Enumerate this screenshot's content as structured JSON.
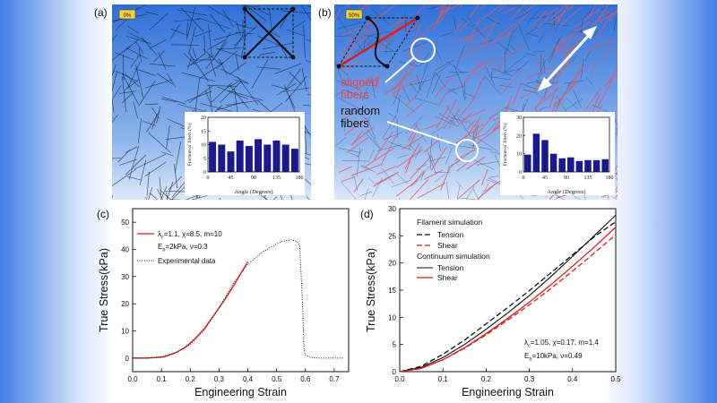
{
  "colors": {
    "panel_bg_top": "#2f6fd8",
    "panel_bg_bottom": "#d9e8fb",
    "fiber_dark": "#1b2430",
    "fiber_red": "#e05a63",
    "hist_bar": "#1a1a8c",
    "red_line": "#d81f1f",
    "black_line": "#111111"
  },
  "panels": {
    "a": {
      "label": "(a)",
      "strain_badge": "0%"
    },
    "b": {
      "label": "(b)",
      "strain_badge": "50%",
      "aligned_label": "aligned\nfibers",
      "random_label": "random\nfibers"
    },
    "c": {
      "label": "(c)"
    },
    "d": {
      "label": "(d)"
    }
  },
  "chart_data": [
    {
      "id": "hist_a",
      "type": "bar",
      "title": "",
      "xlabel": "Angle (Degrees)",
      "ylabel": "Fraction of fibers (%)",
      "x_ticks": [
        0,
        45,
        90,
        135,
        180
      ],
      "y_ticks": [
        0,
        5,
        10,
        15,
        20
      ],
      "ylim": [
        0,
        20
      ],
      "xlim": [
        0,
        180
      ],
      "bin_centers": [
        9,
        27,
        45,
        63,
        81,
        99,
        117,
        135,
        153,
        171
      ],
      "values": [
        11,
        10,
        7.5,
        11.5,
        9.5,
        12,
        10,
        11.5,
        10,
        8.5
      ]
    },
    {
      "id": "hist_b",
      "type": "bar",
      "title": "",
      "xlabel": "Angle (Degrees)",
      "ylabel": "Fraction of fibers (%)",
      "x_ticks": [
        0,
        45,
        90,
        135,
        180
      ],
      "y_ticks": [
        0,
        10,
        20,
        30
      ],
      "ylim": [
        0,
        30
      ],
      "xlim": [
        0,
        180
      ],
      "bin_centers": [
        9,
        27,
        45,
        63,
        81,
        99,
        117,
        135,
        153,
        171
      ],
      "values": [
        9.5,
        21,
        17.5,
        10,
        7.5,
        8,
        6,
        6.5,
        6.5,
        7
      ]
    },
    {
      "id": "chart_c",
      "type": "line",
      "title": "",
      "xlabel": "Engineering Strain",
      "ylabel": "True Stress(kPa)",
      "xlim": [
        0,
        0.75
      ],
      "ylim": [
        -5,
        55
      ],
      "x_ticks": [
        0.0,
        0.1,
        0.2,
        0.3,
        0.4,
        0.5,
        0.6,
        0.7
      ],
      "y_ticks": [
        0,
        10,
        20,
        30,
        40,
        50
      ],
      "legend": {
        "line1_prefix": "λ",
        "line1_sub": "c",
        "line1_rest": "=1.1,  χ=8.5, m=10",
        "line2_prefix": "E",
        "line2_sub": "b",
        "line2_rest": "=2kPa, ν=0.3",
        "line3": "Experimental data"
      },
      "series": [
        {
          "name": "Model fit",
          "style": "solid-red",
          "x": [
            0.0,
            0.05,
            0.1,
            0.12,
            0.15,
            0.18,
            0.2,
            0.22,
            0.25,
            0.28,
            0.3,
            0.32,
            0.35,
            0.38,
            0.4
          ],
          "y": [
            0.0,
            0.0,
            0.3,
            0.8,
            2.0,
            3.8,
            5.5,
            7.5,
            11,
            15.5,
            18.5,
            21.5,
            26.5,
            32,
            35.5
          ]
        },
        {
          "name": "Experimental data",
          "style": "dotted-black",
          "x": [
            0.0,
            0.05,
            0.1,
            0.15,
            0.2,
            0.25,
            0.3,
            0.35,
            0.4,
            0.45,
            0.5,
            0.52,
            0.55,
            0.57,
            0.58,
            0.59,
            0.595,
            0.6,
            0.62,
            0.65,
            0.7,
            0.73
          ],
          "y": [
            0.0,
            0.0,
            0.5,
            2.0,
            5.0,
            10.5,
            18.5,
            27.5,
            34.5,
            39.0,
            42.0,
            43.0,
            43.5,
            43.0,
            41.5,
            20,
            3.0,
            1.0,
            0.2,
            0.0,
            0.0,
            0.0
          ]
        }
      ]
    },
    {
      "id": "chart_d",
      "type": "line",
      "title": "",
      "xlabel": "Engineering Strain",
      "ylabel": "True Stress(kPa)",
      "xlim": [
        0,
        0.5
      ],
      "ylim": [
        0,
        30
      ],
      "x_ticks": [
        0.0,
        0.1,
        0.2,
        0.3,
        0.4,
        0.5
      ],
      "y_ticks": [
        0,
        5,
        10,
        15,
        20,
        25,
        30
      ],
      "legend": {
        "group1_title": "Filament simulation",
        "item_tension_dashed": "Tension",
        "item_shear_dashed": "Shear",
        "group2_title": "Continuum simulation",
        "item_tension_solid": "Tension",
        "item_shear_solid": "Shear",
        "param1_prefix": "λ",
        "param1_sub": "c",
        "param1_rest": "=1.05, χ=0.17, m=1.4",
        "param2_prefix": "E",
        "param2_sub": "b",
        "param2_rest": "=10kPa, ν=0.49"
      },
      "series": [
        {
          "name": "Filament Tension",
          "style": "dashed-black",
          "x": [
            0,
            0.05,
            0.1,
            0.15,
            0.2,
            0.25,
            0.3,
            0.35,
            0.4,
            0.45,
            0.5
          ],
          "y": [
            0,
            1.0,
            3.2,
            5.8,
            8.8,
            11.8,
            14.9,
            18.2,
            21.5,
            24.8,
            27.6
          ]
        },
        {
          "name": "Filament Shear",
          "style": "dashed-red",
          "x": [
            0,
            0.05,
            0.1,
            0.15,
            0.2,
            0.25,
            0.3,
            0.35,
            0.4,
            0.45,
            0.5
          ],
          "y": [
            0,
            0.6,
            2.2,
            4.3,
            6.8,
            9.5,
            12.3,
            15.3,
            18.5,
            21.8,
            25.2
          ]
        },
        {
          "name": "Continuum Tension",
          "style": "solid-black",
          "x": [
            0,
            0.05,
            0.1,
            0.15,
            0.2,
            0.25,
            0.3,
            0.35,
            0.4,
            0.45,
            0.5
          ],
          "y": [
            0,
            0.8,
            2.6,
            5.0,
            7.8,
            10.8,
            14.0,
            17.5,
            21.2,
            25.0,
            28.8
          ]
        },
        {
          "name": "Continuum Shear",
          "style": "solid-red",
          "x": [
            0,
            0.05,
            0.1,
            0.15,
            0.2,
            0.25,
            0.3,
            0.35,
            0.4,
            0.45,
            0.5
          ],
          "y": [
            0,
            0.6,
            2.2,
            4.4,
            7.0,
            9.8,
            12.8,
            16.0,
            19.4,
            22.9,
            26.6
          ]
        }
      ]
    }
  ]
}
